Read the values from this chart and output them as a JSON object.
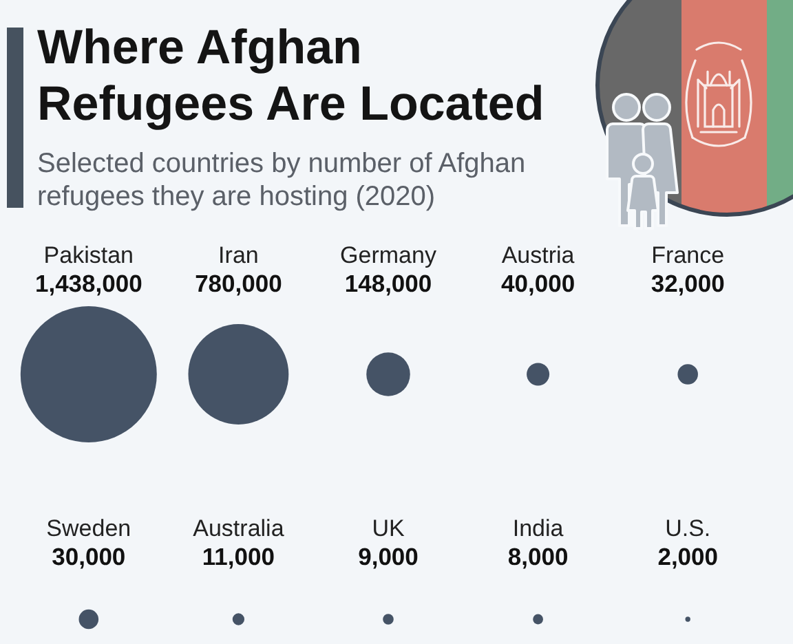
{
  "chart_data": {
    "type": "other",
    "title": "Where Afghan Refugees Are Located",
    "subtitle": "Selected countries by number of Afghan refugees they are hosting (2020)",
    "categories": [
      "Pakistan",
      "Iran",
      "Germany",
      "Austria",
      "France",
      "Sweden",
      "Australia",
      "UK",
      "India",
      "U.S."
    ],
    "values": [
      1438000,
      780000,
      148000,
      40000,
      32000,
      30000,
      11000,
      9000,
      8000,
      2000
    ],
    "value_labels": [
      "1,438,000",
      "780,000",
      "148,000",
      "40,000",
      "32,000",
      "30,000",
      "11,000",
      "9,000",
      "8,000",
      "2,000"
    ],
    "color": "#455366"
  }
}
